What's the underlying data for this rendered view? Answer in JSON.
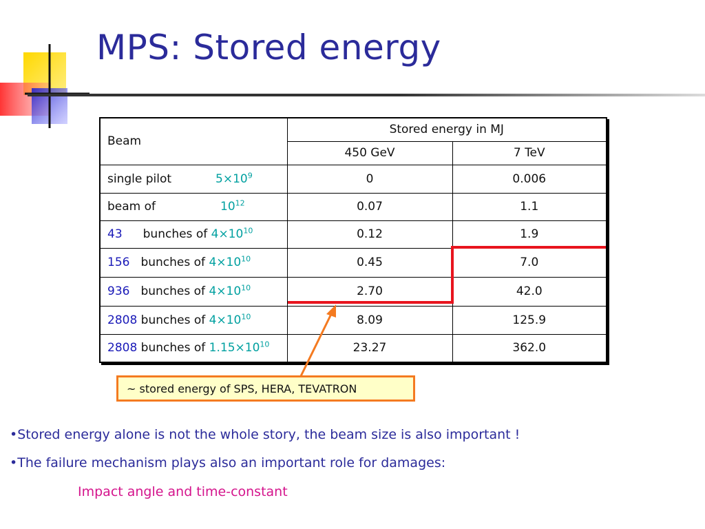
{
  "title": "MPS: Stored energy",
  "colors": {
    "title": "#2b2b9a",
    "count": "#1a1ab8",
    "value": "#00a0a0",
    "highlight": "#e8141e",
    "arrow": "#f47a20",
    "note": "#d4148c"
  },
  "table": {
    "beam_header": "Beam",
    "group_header": "Stored energy in MJ",
    "col_450": "450 GeV",
    "col_7": "7 TeV",
    "rows": [
      {
        "count": "",
        "label": "single pilot",
        "base": "5×10",
        "exp": "9",
        "e450": "0",
        "e7": "0.006"
      },
      {
        "count": "",
        "label": "beam of",
        "base": "10",
        "exp": "12",
        "e450": "0.07",
        "e7": "1.1"
      },
      {
        "count": "43",
        "label": "bunches of",
        "base": "4×10",
        "exp": "10",
        "e450": "0.12",
        "e7": "1.9"
      },
      {
        "count": "156",
        "label": "bunches of",
        "base": "4×10",
        "exp": "10",
        "e450": "0.45",
        "e7": "7.0"
      },
      {
        "count": "936",
        "label": "bunches of",
        "base": "4×10",
        "exp": "10",
        "e450": "2.70",
        "e7": "42.0"
      },
      {
        "count": "2808",
        "label": "bunches of",
        "base": "4×10",
        "exp": "10",
        "e450": "8.09",
        "e7": "125.9"
      },
      {
        "count": "2808",
        "label": "bunches of",
        "base": "1.15×10",
        "exp": "10",
        "e450": "23.27",
        "e7": "362.0"
      }
    ]
  },
  "callout": "~ stored energy of SPS, HERA, TEVATRON",
  "bullets": [
    "•Stored energy alone is not the whole story, the beam size is also important !",
    "•The failure mechanism plays also an important role for damages:"
  ],
  "sub_bullet": "Impact angle and time-constant"
}
